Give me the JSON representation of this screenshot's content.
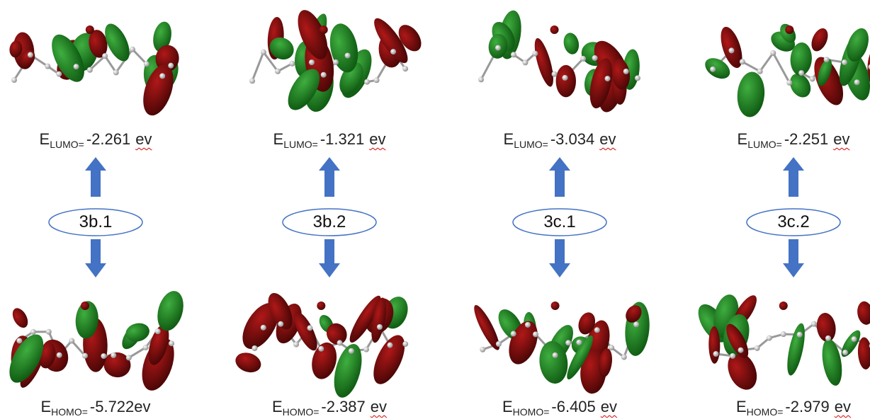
{
  "columns": [
    {
      "label": "3b.1",
      "lumo": {
        "symbol": "E",
        "sub": "LUMO=",
        "value": "-2.261",
        "unit": "ev"
      },
      "homo": {
        "symbol": "E",
        "sub": "HOMO=",
        "value": "-5.722ev"
      }
    },
    {
      "label": "3b.2",
      "lumo": {
        "symbol": "E",
        "sub": "LUMO=",
        "value": "-1.321",
        "unit": "ev"
      },
      "homo": {
        "symbol": "E",
        "sub": "HOMO=",
        "value": "-2.387",
        "unit": "ev"
      }
    },
    {
      "label": "3c.1",
      "lumo": {
        "symbol": "E",
        "sub": "LUMO=",
        "value": "-3.034",
        "unit": "ev"
      },
      "homo": {
        "symbol": "E",
        "sub": "HOMO=",
        "value": "-6.405",
        "unit": "ev"
      }
    },
    {
      "label": "3c.2",
      "lumo": {
        "symbol": "E",
        "sub": "LUMO=",
        "value": "-2.251",
        "unit": "ev"
      },
      "homo": {
        "symbol": "E",
        "sub": "HOMO=",
        "value": "-2.979",
        "unit": "ev"
      }
    }
  ]
}
